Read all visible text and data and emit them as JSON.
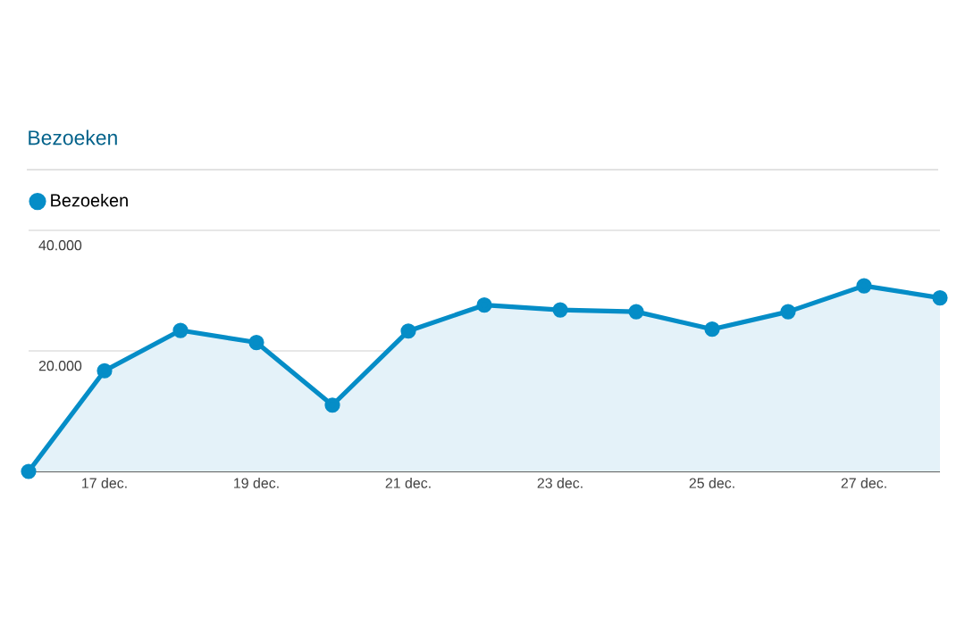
{
  "chart_data": {
    "type": "area",
    "title": "Bezoeken",
    "categories": [
      null,
      "17 dec.",
      null,
      "19 dec.",
      null,
      "21 dec.",
      null,
      "23 dec.",
      null,
      "25 dec.",
      null,
      "27 dec.",
      null
    ],
    "series": [
      {
        "name": "Bezoeken",
        "color": "#058dc7",
        "values": [
          0,
          16700,
          23400,
          21400,
          11000,
          23300,
          27600,
          26800,
          26500,
          23600,
          26500,
          30800,
          28800
        ]
      }
    ],
    "ylim": [
      0,
      40000
    ],
    "yticks": [
      {
        "value": 0,
        "label": null
      },
      {
        "value": 20000,
        "label": "20.000"
      },
      {
        "value": 40000,
        "label": "40.000"
      }
    ],
    "grid": "y",
    "legend": "top left",
    "marker": "circle",
    "line_style": "solid"
  }
}
